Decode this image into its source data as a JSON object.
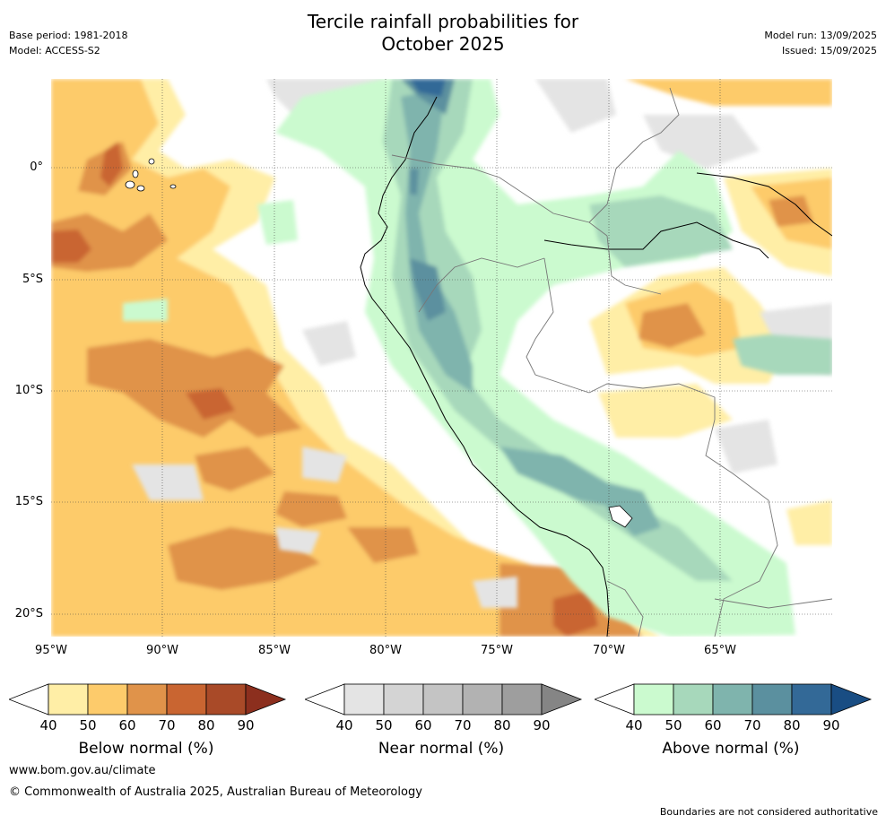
{
  "title_line1": "Tercile rainfall probabilities for",
  "title_line2": "October 2025",
  "base_period": "Base period: 1981-2018",
  "model": "Model: ACCESS-S2",
  "model_run": "Model run: 13/09/2025",
  "issued": "Issued: 15/09/2025",
  "lat_labels": [
    "0°",
    "5°S",
    "10°S",
    "15°S",
    "20°S"
  ],
  "lon_labels": [
    "95°W",
    "90°W",
    "85°W",
    "80°W",
    "75°W",
    "70°W",
    "65°W"
  ],
  "colorbars": [
    {
      "title": "Below normal (%)",
      "ticks": [
        "40",
        "50",
        "60",
        "70",
        "80",
        "90"
      ],
      "colors": [
        "#ffeea6",
        "#fdcb6b",
        "#e0934a",
        "#c96531",
        "#a94a28",
        "#8c2f1e"
      ]
    },
    {
      "title": "Near normal (%)",
      "ticks": [
        "40",
        "50",
        "60",
        "70",
        "80",
        "90"
      ],
      "colors": [
        "#e4e4e4",
        "#d4d4d4",
        "#c4c4c4",
        "#b2b2b2",
        "#9e9e9e",
        "#858585"
      ]
    },
    {
      "title": "Above normal (%)",
      "ticks": [
        "40",
        "50",
        "60",
        "70",
        "80",
        "90"
      ],
      "colors": [
        "#cbfacf",
        "#a7d8bb",
        "#7fb4ad",
        "#5b909f",
        "#336997",
        "#194d83"
      ]
    }
  ],
  "website": "www.bom.gov.au/climate",
  "copyright": "© Commonwealth of Australia 2025, Australian Bureau of Meteorology",
  "boundaries_note": "Boundaries are not considered authoritative"
}
